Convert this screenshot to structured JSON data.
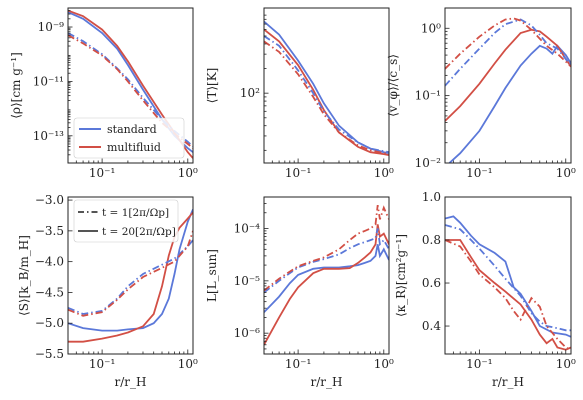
{
  "colors": {
    "standard": "#5b78d9",
    "multifluid": "#d24f45"
  },
  "legend_models": [
    {
      "name": "standard",
      "color": "#5b78d9"
    },
    {
      "name": "multifluid",
      "color": "#d24f45"
    }
  ],
  "legend_times": [
    {
      "label": "t = 1[2π/Ωp]",
      "style": "dashdot"
    },
    {
      "label": "t = 20[2π/Ωp]",
      "style": "solid"
    }
  ],
  "chart_data": [
    {
      "type": "line",
      "ylabel": "⟨ρ⟩[cm g⁻¹]",
      "xlabel": "",
      "xlog": true,
      "ylog": true,
      "xlim": [
        0.04,
        1.15
      ],
      "ylim": [
        1e-14,
        5e-09
      ],
      "xticks": [
        {
          "v": 0.1,
          "label": "10⁻¹"
        },
        {
          "v": 1,
          "label": "10⁰"
        }
      ],
      "yticks": [
        {
          "v": 1e-09,
          "label": "10⁻⁹"
        },
        {
          "v": 1e-11,
          "label": "10⁻¹¹"
        },
        {
          "v": 1e-13,
          "label": "10⁻¹³"
        }
      ],
      "legend": "models",
      "series": [
        {
          "model": "standard",
          "style": "solid",
          "x": [
            0.04,
            0.06,
            0.1,
            0.15,
            0.2,
            0.3,
            0.5,
            0.7,
            1.0,
            1.15
          ],
          "y": [
            3.5e-09,
            2e-09,
            6e-10,
            1.6e-10,
            4e-11,
            5e-12,
            4e-13,
            1e-13,
            3.5e-14,
            2.5e-14
          ]
        },
        {
          "model": "multifluid",
          "style": "solid",
          "x": [
            0.04,
            0.06,
            0.1,
            0.15,
            0.2,
            0.3,
            0.5,
            0.7,
            1.0,
            1.15
          ],
          "y": [
            4e-09,
            2.5e-09,
            8e-10,
            2e-10,
            5.5e-11,
            7e-12,
            6e-13,
            1.3e-13,
            2.5e-14,
            1.5e-14
          ]
        },
        {
          "model": "standard",
          "style": "dashdot",
          "x": [
            0.04,
            0.06,
            0.1,
            0.15,
            0.2,
            0.3,
            0.5,
            0.7,
            1.0,
            1.15
          ],
          "y": [
            6e-10,
            3e-10,
            1e-10,
            3e-11,
            1.2e-11,
            2.5e-12,
            4e-13,
            1.5e-13,
            6e-14,
            4e-14
          ]
        },
        {
          "model": "multifluid",
          "style": "dashdot",
          "x": [
            0.04,
            0.06,
            0.1,
            0.15,
            0.2,
            0.3,
            0.5,
            0.7,
            1.0,
            1.15
          ],
          "y": [
            5e-10,
            2.5e-10,
            9e-11,
            2.8e-11,
            1e-11,
            2e-12,
            3e-13,
            1.2e-13,
            5e-14,
            3.5e-14
          ]
        }
      ]
    },
    {
      "type": "line",
      "ylabel": "⟨T⟩[K]",
      "xlabel": "",
      "xlog": true,
      "ylog": true,
      "xlim": [
        0.04,
        1.15
      ],
      "ylim": [
        14,
        1100
      ],
      "xticks": [
        {
          "v": 0.1,
          "label": "10⁻¹"
        },
        {
          "v": 1,
          "label": "10⁰"
        }
      ],
      "yticks": [
        {
          "v": 100,
          "label": "10²"
        }
      ],
      "series": [
        {
          "model": "standard",
          "style": "solid",
          "x": [
            0.04,
            0.06,
            0.1,
            0.15,
            0.2,
            0.3,
            0.5,
            0.7,
            1.0,
            1.15
          ],
          "y": [
            750,
            520,
            250,
            130,
            75,
            40,
            25,
            21,
            19,
            18.5
          ]
        },
        {
          "model": "multifluid",
          "style": "solid",
          "x": [
            0.04,
            0.06,
            0.1,
            0.15,
            0.2,
            0.3,
            0.5,
            0.7,
            1.0,
            1.15
          ],
          "y": [
            600,
            430,
            220,
            110,
            62,
            33,
            22,
            19,
            18,
            17.5
          ]
        },
        {
          "model": "standard",
          "style": "dashdot",
          "x": [
            0.04,
            0.06,
            0.1,
            0.15,
            0.2,
            0.3,
            0.5,
            0.7,
            1.0,
            1.15
          ],
          "y": [
            500,
            380,
            190,
            100,
            60,
            36,
            25,
            21,
            19.5,
            19
          ]
        },
        {
          "model": "multifluid",
          "style": "dashdot",
          "x": [
            0.04,
            0.06,
            0.1,
            0.15,
            0.2,
            0.3,
            0.5,
            0.7,
            1.0,
            1.15
          ],
          "y": [
            430,
            320,
            170,
            90,
            55,
            33,
            23,
            20,
            18.5,
            18
          ]
        }
      ]
    },
    {
      "type": "line",
      "ylabel": "⟨v_φ⟩/⟨c_s⟩",
      "xlabel": "",
      "xlog": true,
      "ylog": true,
      "xlim": [
        0.04,
        1.15
      ],
      "ylim": [
        0.01,
        2
      ],
      "xticks": [
        {
          "v": 0.1,
          "label": "10⁻¹"
        },
        {
          "v": 1,
          "label": "10⁰"
        }
      ],
      "yticks": [
        {
          "v": 0.01,
          "label": "10⁻²"
        },
        {
          "v": 0.1,
          "label": "10⁻¹"
        },
        {
          "v": 1,
          "label": "10⁰"
        }
      ],
      "series": [
        {
          "model": "standard",
          "style": "solid",
          "x": [
            0.045,
            0.06,
            0.1,
            0.15,
            0.2,
            0.3,
            0.4,
            0.5,
            0.6,
            0.7,
            0.8,
            1.0,
            1.15
          ],
          "y": [
            0.01,
            0.014,
            0.03,
            0.07,
            0.13,
            0.28,
            0.42,
            0.55,
            0.5,
            0.42,
            0.55,
            0.4,
            0.3
          ]
        },
        {
          "model": "multifluid",
          "style": "solid",
          "x": [
            0.04,
            0.06,
            0.1,
            0.15,
            0.2,
            0.3,
            0.4,
            0.5,
            0.6,
            0.8,
            1.0,
            1.15
          ],
          "y": [
            0.042,
            0.07,
            0.15,
            0.3,
            0.48,
            0.85,
            0.95,
            0.9,
            0.75,
            0.55,
            0.35,
            0.27
          ]
        },
        {
          "model": "standard",
          "style": "dashdot",
          "x": [
            0.04,
            0.06,
            0.1,
            0.15,
            0.2,
            0.3,
            0.4,
            0.5,
            0.6,
            0.8,
            1.0,
            1.15
          ],
          "y": [
            0.14,
            0.25,
            0.5,
            0.85,
            1.15,
            1.35,
            1.1,
            0.8,
            0.6,
            0.5,
            0.35,
            0.28
          ]
        },
        {
          "model": "multifluid",
          "style": "dashdot",
          "x": [
            0.04,
            0.06,
            0.1,
            0.15,
            0.2,
            0.25,
            0.3,
            0.4,
            0.5,
            0.6,
            0.8,
            1.0,
            1.15
          ],
          "y": [
            0.25,
            0.42,
            0.75,
            1.1,
            1.35,
            1.4,
            1.3,
            0.95,
            0.7,
            0.55,
            0.42,
            0.32,
            0.27
          ]
        }
      ]
    },
    {
      "type": "line",
      "ylabel": "⟨S⟩[k_B/m_H]",
      "xlabel": "r/r_H",
      "xlog": true,
      "ylog": false,
      "xlim": [
        0.04,
        1.15
      ],
      "ylim": [
        -5.5,
        -2.95
      ],
      "xticks": [
        {
          "v": 0.1,
          "label": "10⁻¹"
        },
        {
          "v": 1,
          "label": "10⁰"
        }
      ],
      "yticks": [
        {
          "v": -3.0,
          "label": "−3.0"
        },
        {
          "v": -3.5,
          "label": "−3.5"
        },
        {
          "v": -4.0,
          "label": "−4.0"
        },
        {
          "v": -4.5,
          "label": "−4.5"
        },
        {
          "v": -5.0,
          "label": "−5.0"
        },
        {
          "v": -5.5,
          "label": "−5.5"
        }
      ],
      "legend": "times",
      "series": [
        {
          "model": "standard",
          "style": "solid",
          "x": [
            0.04,
            0.06,
            0.1,
            0.15,
            0.2,
            0.3,
            0.4,
            0.5,
            0.6,
            0.7,
            0.8,
            1.0,
            1.15
          ],
          "y": [
            -5.0,
            -5.08,
            -5.12,
            -5.12,
            -5.1,
            -5.08,
            -5.0,
            -4.85,
            -4.6,
            -4.2,
            -3.8,
            -3.35,
            -3.15
          ]
        },
        {
          "model": "multifluid",
          "style": "solid",
          "x": [
            0.04,
            0.06,
            0.1,
            0.15,
            0.2,
            0.3,
            0.4,
            0.5,
            0.6,
            0.7,
            0.8,
            1.0,
            1.15
          ],
          "y": [
            -5.3,
            -5.3,
            -5.25,
            -5.2,
            -5.15,
            -5.05,
            -4.85,
            -4.4,
            -3.9,
            -3.6,
            -3.45,
            -3.3,
            -3.2
          ]
        },
        {
          "model": "standard",
          "style": "dashdot",
          "x": [
            0.04,
            0.06,
            0.1,
            0.15,
            0.2,
            0.3,
            0.5,
            0.7,
            1.0,
            1.15
          ],
          "y": [
            -4.75,
            -4.85,
            -4.8,
            -4.6,
            -4.4,
            -4.2,
            -4.05,
            -3.95,
            -3.75,
            -3.65
          ]
        },
        {
          "model": "multifluid",
          "style": "dashdot",
          "x": [
            0.04,
            0.06,
            0.1,
            0.15,
            0.2,
            0.3,
            0.5,
            0.7,
            1.0,
            1.15
          ],
          "y": [
            -4.78,
            -4.88,
            -4.82,
            -4.62,
            -4.45,
            -4.25,
            -4.1,
            -4.0,
            -3.75,
            -3.5
          ]
        }
      ]
    },
    {
      "type": "line",
      "ylabel": "L[L_sun]",
      "xlabel": "r/r_H",
      "xlog": true,
      "ylog": true,
      "xlim": [
        0.04,
        1.15
      ],
      "ylim": [
        4e-07,
        0.0004
      ],
      "xticks": [
        {
          "v": 0.1,
          "label": "10⁻¹"
        },
        {
          "v": 1,
          "label": "10⁰"
        }
      ],
      "yticks": [
        {
          "v": 1e-06,
          "label": "10⁻⁶"
        },
        {
          "v": 1e-05,
          "label": "10⁻⁵"
        },
        {
          "v": 0.0001,
          "label": "10⁻⁴"
        }
      ],
      "series": [
        {
          "model": "standard",
          "style": "solid",
          "x": [
            0.04,
            0.06,
            0.08,
            0.1,
            0.15,
            0.2,
            0.3,
            0.4,
            0.5,
            0.6,
            0.7,
            0.8,
            0.85,
            0.9,
            1.0,
            1.15
          ],
          "y": [
            2.5e-06,
            5e-06,
            9e-06,
            1.3e-05,
            1.7e-05,
            1.8e-05,
            1.8e-05,
            1.9e-05,
            2e-05,
            2.2e-05,
            2.4e-05,
            3e-05,
            5e-05,
            3e-05,
            4e-05,
            2.5e-05
          ]
        },
        {
          "model": "multifluid",
          "style": "solid",
          "x": [
            0.04,
            0.06,
            0.08,
            0.1,
            0.15,
            0.2,
            0.3,
            0.4,
            0.5,
            0.6,
            0.7,
            0.8,
            0.85,
            0.9,
            1.0,
            1.15
          ],
          "y": [
            6e-07,
            2e-06,
            4.5e-06,
            7.5e-06,
            1.4e-05,
            1.7e-05,
            1.7e-05,
            1.75e-05,
            2.2e-05,
            2.8e-05,
            3.5e-05,
            5e-05,
            0.00012,
            7e-05,
            8e-05,
            5e-05
          ]
        },
        {
          "model": "standard",
          "style": "dashdot",
          "x": [
            0.04,
            0.06,
            0.08,
            0.1,
            0.15,
            0.2,
            0.3,
            0.4,
            0.5,
            0.6,
            0.7,
            0.8,
            0.85,
            0.9,
            1.0,
            1.15
          ],
          "y": [
            6e-06,
            1e-05,
            1.4e-05,
            1.8e-05,
            2.3e-05,
            2.6e-05,
            3.2e-05,
            4.2e-05,
            5e-05,
            5.5e-05,
            6e-05,
            6.5e-05,
            0.0001,
            5e-05,
            6e-05,
            4e-05
          ]
        },
        {
          "model": "multifluid",
          "style": "dashdot",
          "x": [
            0.04,
            0.06,
            0.08,
            0.1,
            0.15,
            0.2,
            0.3,
            0.4,
            0.5,
            0.6,
            0.7,
            0.8,
            0.85,
            0.9,
            1.0,
            1.15
          ],
          "y": [
            6.5e-06,
            1.1e-05,
            1.5e-05,
            1.9e-05,
            2.4e-05,
            2.8e-05,
            4e-05,
            6e-05,
            8e-05,
            9e-05,
            0.0001,
            0.00012,
            0.00028,
            0.00015,
            0.00025,
            0.00015
          ]
        }
      ]
    },
    {
      "type": "line",
      "ylabel": "⟨κ_R⟩[cm²g⁻¹]",
      "xlabel": "r/r_H",
      "xlog": true,
      "ylog": false,
      "xlim": [
        0.04,
        1.15
      ],
      "ylim": [
        0.27,
        1.0
      ],
      "xticks": [
        {
          "v": 0.1,
          "label": "10⁻¹"
        },
        {
          "v": 1,
          "label": "10⁰"
        }
      ],
      "yticks": [
        {
          "v": 1.0,
          "label": "1.0"
        },
        {
          "v": 0.8,
          "label": "0.8"
        },
        {
          "v": 0.6,
          "label": "0.6"
        },
        {
          "v": 0.4,
          "label": "0.4"
        }
      ],
      "series": [
        {
          "model": "standard",
          "style": "solid",
          "x": [
            0.04,
            0.05,
            0.06,
            0.08,
            0.1,
            0.15,
            0.2,
            0.25,
            0.3,
            0.4,
            0.5,
            0.7,
            1.0,
            1.15
          ],
          "y": [
            0.9,
            0.91,
            0.88,
            0.82,
            0.78,
            0.74,
            0.7,
            0.58,
            0.55,
            0.47,
            0.4,
            0.37,
            0.36,
            0.35
          ]
        },
        {
          "model": "multifluid",
          "style": "solid",
          "x": [
            0.04,
            0.06,
            0.08,
            0.1,
            0.15,
            0.2,
            0.3,
            0.4,
            0.5,
            0.6,
            0.7,
            0.8,
            1.0,
            1.15
          ],
          "y": [
            0.8,
            0.8,
            0.72,
            0.66,
            0.6,
            0.56,
            0.5,
            0.43,
            0.36,
            0.32,
            0.34,
            0.3,
            0.29,
            0.3
          ]
        },
        {
          "model": "standard",
          "style": "dashdot",
          "x": [
            0.04,
            0.06,
            0.08,
            0.1,
            0.15,
            0.2,
            0.3,
            0.4,
            0.5,
            0.6,
            0.8,
            1.0,
            1.15
          ],
          "y": [
            0.87,
            0.85,
            0.8,
            0.76,
            0.68,
            0.62,
            0.54,
            0.46,
            0.42,
            0.4,
            0.39,
            0.38,
            0.38
          ]
        },
        {
          "model": "multifluid",
          "style": "dashdot",
          "x": [
            0.04,
            0.06,
            0.08,
            0.1,
            0.15,
            0.2,
            0.25,
            0.3,
            0.4,
            0.5,
            0.6,
            0.8,
            1.0,
            1.15
          ],
          "y": [
            0.8,
            0.77,
            0.7,
            0.64,
            0.58,
            0.53,
            0.47,
            0.43,
            0.53,
            0.49,
            0.4,
            0.34,
            0.3,
            0.29
          ]
        }
      ]
    }
  ]
}
